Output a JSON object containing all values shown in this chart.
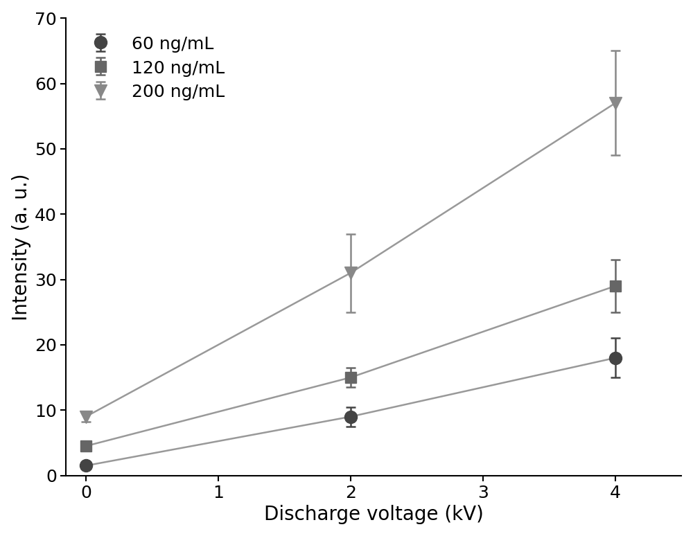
{
  "x": [
    0,
    2,
    4
  ],
  "series": [
    {
      "label": "60 ng/mL",
      "y": [
        1.5,
        9.0,
        18.0
      ],
      "yerr": [
        0.5,
        1.5,
        3.0
      ],
      "color": "#444444",
      "marker": "o",
      "markersize": 13
    },
    {
      "label": "120 ng/mL",
      "y": [
        4.5,
        15.0,
        29.0
      ],
      "yerr": [
        0.6,
        1.5,
        4.0
      ],
      "color": "#666666",
      "marker": "s",
      "markersize": 11
    },
    {
      "label": "200 ng/mL",
      "y": [
        9.0,
        31.0,
        57.0
      ],
      "yerr": [
        0.8,
        6.0,
        8.0
      ],
      "color": "#888888",
      "marker": "v",
      "markersize": 13
    }
  ],
  "xlabel": "Discharge voltage (kV)",
  "ylabel": "Intensity (a. u.)",
  "xlim": [
    -0.15,
    4.5
  ],
  "ylim": [
    0,
    70
  ],
  "yticks": [
    0,
    10,
    20,
    30,
    40,
    50,
    60,
    70
  ],
  "xticks": [
    0,
    1,
    2,
    3,
    4
  ],
  "line_color": "#999999",
  "background_color": "#ffffff",
  "legend_fontsize": 18,
  "axis_label_fontsize": 20,
  "tick_fontsize": 18
}
